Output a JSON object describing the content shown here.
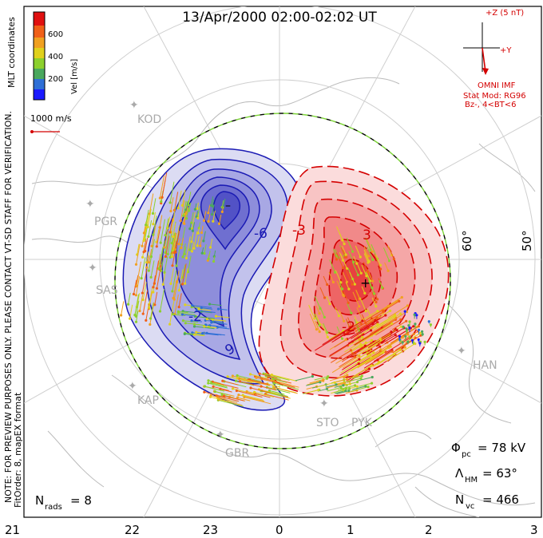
{
  "title": "13/Apr/2000 02:00-02:02 UT",
  "colorbar": {
    "ticks": [
      "600",
      "400",
      "200"
    ],
    "label": "Vel [m/s]",
    "colors": [
      "#1a1aff",
      "#2f6fd6",
      "#4aa85e",
      "#8cd02d",
      "#e0d11c",
      "#f0a020",
      "#f06018",
      "#e01010"
    ]
  },
  "coord_label": "MLT coordinates",
  "side_note": "NOTE: FOR PREVIEW PURPOSES ONLY. PLEASE CONTACT VT-SD STAFF FOR VERIFICATION.",
  "fit_order": "FitOrder: 8, mapEX format",
  "scale_vector": {
    "label": "1000 m/s"
  },
  "imf": {
    "z_label": "+Z (5 nT)",
    "y_label": "+Y",
    "source": "OMNI IMF",
    "model": "Stat Mod: RG96",
    "condition": "Bz-, 4<BT<6"
  },
  "stations": [
    {
      "code": "KOD"
    },
    {
      "code": "PGR"
    },
    {
      "code": "SAS"
    },
    {
      "code": "KAP"
    },
    {
      "code": "GBR"
    },
    {
      "code": "STO"
    },
    {
      "code": "PYK"
    },
    {
      "code": "HAN"
    }
  ],
  "lat_labels": [
    "60°",
    "50°"
  ],
  "contour_labels": [
    "-6",
    "-3",
    "-2",
    "9",
    "3",
    "-2"
  ],
  "stats": {
    "phi_pc": {
      "symbol": "Φ",
      "sub": "pc",
      "value": "= 78 kV"
    },
    "lambda_hm": {
      "symbol": "Λ",
      "sub": "HM",
      "value": "= 63°"
    },
    "n_vc": {
      "symbol": "N",
      "sub": "vc",
      "value": "= 466"
    },
    "n_rads": {
      "symbol": "N",
      "sub": "rads",
      "value": "= 8"
    }
  },
  "mlt_axis": [
    "21",
    "22",
    "23",
    "0",
    "1",
    "2",
    "3"
  ],
  "accent": {
    "positive": "#d40000",
    "negative": "#1a1ab4"
  }
}
